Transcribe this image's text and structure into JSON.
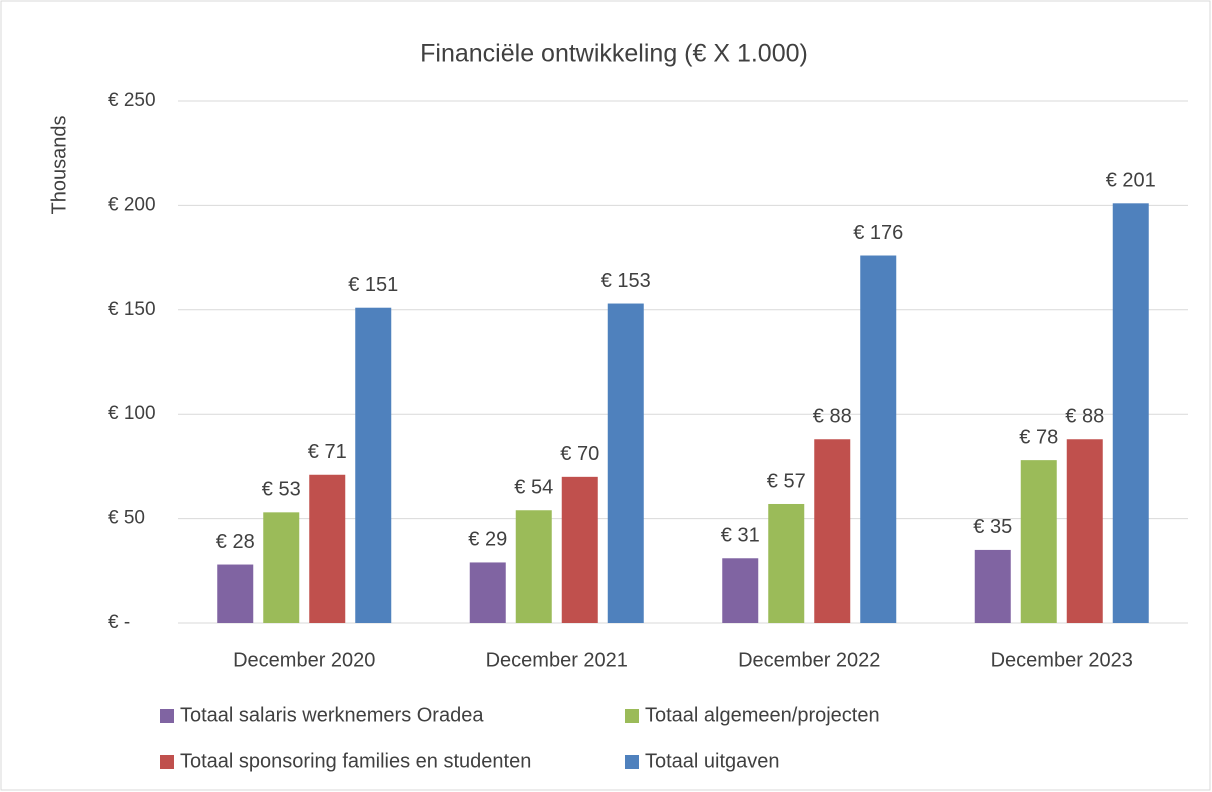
{
  "chart_data": {
    "type": "bar",
    "title": "Financiële ontwikkeling (€ X 1.000)",
    "y_label": "Thousands",
    "categories": [
      "December 2020",
      "December 2021",
      "December 2022",
      "December 2023"
    ],
    "series": [
      {
        "name": "Totaal salaris werknemers Oradea",
        "color": "#8064a2",
        "values": [
          28,
          29,
          31,
          35
        ],
        "value_labels": [
          "€ 28",
          "€ 29",
          "€ 31",
          "€ 35"
        ]
      },
      {
        "name": "Totaal algemeen/projecten",
        "color": "#9bbb59",
        "values": [
          53,
          54,
          57,
          78
        ],
        "value_labels": [
          "€ 53",
          "€ 54",
          "€ 57",
          "€ 78"
        ]
      },
      {
        "name": "Totaal sponsoring families en studenten",
        "color": "#c0504d",
        "values": [
          71,
          70,
          88,
          88
        ],
        "value_labels": [
          "€ 71",
          "€ 70",
          "€ 88",
          "€ 88"
        ]
      },
      {
        "name": "Totaal uitgaven",
        "color": "#4f81bd",
        "values": [
          151,
          153,
          176,
          201
        ],
        "value_labels": [
          "€ 151",
          "€ 153",
          "€ 176",
          "€ 201"
        ]
      }
    ],
    "ylim": [
      0,
      250
    ],
    "yticks": [
      {
        "value": 0,
        "label": "€ -"
      },
      {
        "value": 50,
        "label": "€ 50"
      },
      {
        "value": 100,
        "label": "€ 100"
      },
      {
        "value": 150,
        "label": "€ 150"
      },
      {
        "value": 200,
        "label": "€ 200"
      },
      {
        "value": 250,
        "label": "€ 250"
      }
    ],
    "grid": true,
    "legend": "bottom"
  }
}
